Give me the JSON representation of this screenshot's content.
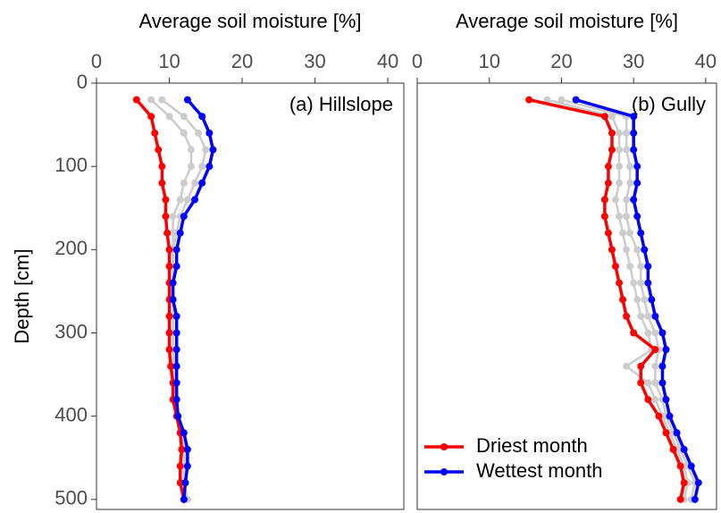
{
  "chart_data": [
    {
      "type": "line",
      "title": "Average soil moisture [%]",
      "panel_label": "(a) Hillslope",
      "ylabel": "Depth [cm]",
      "xlim": [
        0,
        42.2
      ],
      "xticks": [
        0,
        10,
        20,
        30,
        40
      ],
      "ylim": [
        0,
        512
      ],
      "yticks": [
        0,
        100,
        200,
        300,
        400,
        500
      ],
      "y_reversed": true,
      "y": [
        20,
        40,
        60,
        80,
        100,
        120,
        140,
        160,
        180,
        200,
        220,
        240,
        260,
        280,
        300,
        320,
        340,
        360,
        380,
        400,
        420,
        440,
        460,
        480,
        500
      ],
      "series": [
        {
          "color": "#cccccc",
          "values": [
            7.5,
            10,
            12,
            13,
            13,
            12,
            11.5,
            10.5,
            10.5,
            10.5,
            10.5,
            10.5,
            10.5,
            10.5,
            10.5,
            10.5,
            10.5,
            10.8,
            11,
            11,
            11.5,
            12,
            12,
            12,
            12.3
          ]
        },
        {
          "color": "#cccccc",
          "values": [
            9,
            12,
            14,
            15,
            14.5,
            13.5,
            12.5,
            11.5,
            11,
            10.5,
            10.5,
            10.5,
            10.5,
            10.5,
            10.5,
            10.5,
            10.8,
            10.8,
            11,
            11,
            11.8,
            12.2,
            12.2,
            12,
            12.5
          ]
        },
        {
          "name": "Driest month",
          "color": "#ff0000",
          "values": [
            5.5,
            7.5,
            8,
            8.5,
            9,
            9,
            9.5,
            9.5,
            9.7,
            10,
            10,
            10,
            10,
            10,
            10,
            10,
            10.2,
            10.5,
            10.5,
            11,
            11.5,
            11.7,
            11.5,
            11.5,
            12
          ]
        },
        {
          "name": "Wettest month",
          "color": "#0000ff",
          "values": [
            12.5,
            14.5,
            15.5,
            16,
            15.5,
            14.5,
            13.5,
            12,
            11.5,
            11,
            11,
            10.5,
            10.5,
            11,
            11,
            11,
            11,
            11,
            11,
            11.2,
            12,
            12.5,
            12.5,
            12.2,
            12
          ]
        }
      ]
    },
    {
      "type": "line",
      "title": "Average soil moisture [%]",
      "panel_label": "(b) Gully",
      "legend": "bottom-left",
      "xlim": [
        0,
        41.5
      ],
      "xticks": [
        0,
        10,
        20,
        30,
        40
      ],
      "ylim": [
        0,
        512
      ],
      "y_reversed": true,
      "y": [
        20,
        40,
        60,
        80,
        100,
        120,
        140,
        160,
        180,
        200,
        220,
        240,
        260,
        280,
        300,
        320,
        340,
        360,
        380,
        400,
        420,
        440,
        460,
        480,
        500
      ],
      "series": [
        {
          "color": "#cccccc",
          "values": [
            18,
            27,
            28,
            28,
            28,
            28,
            27.5,
            28,
            28.5,
            29,
            29.5,
            30,
            30.5,
            31,
            32,
            32.5,
            29,
            32,
            33,
            34,
            35,
            36,
            37,
            37.5,
            37
          ]
        },
        {
          "color": "#cccccc",
          "values": [
            20,
            29,
            29,
            29,
            29.5,
            29.5,
            29,
            29,
            29.5,
            30.5,
            31,
            31,
            31.5,
            32,
            33,
            33.5,
            33,
            33,
            34,
            34.5,
            35.5,
            36.5,
            37.5,
            38.5,
            38
          ]
        },
        {
          "name": "Driest month",
          "color": "#ff0000",
          "values": [
            15.5,
            26,
            27,
            27,
            26.5,
            26.5,
            26,
            26,
            26.5,
            27,
            27.5,
            28,
            28.5,
            29,
            30,
            33,
            31,
            31,
            32,
            33.5,
            34.5,
            35.5,
            36.5,
            37,
            36.5
          ]
        },
        {
          "name": "Wettest month",
          "color": "#0000ff",
          "values": [
            22,
            30,
            30,
            30,
            30.5,
            30.5,
            30,
            30.5,
            31,
            31.5,
            32,
            32,
            32.5,
            33,
            34,
            34.5,
            34,
            34,
            34.5,
            35,
            36,
            37,
            38,
            39,
            38.5
          ]
        }
      ]
    }
  ]
}
